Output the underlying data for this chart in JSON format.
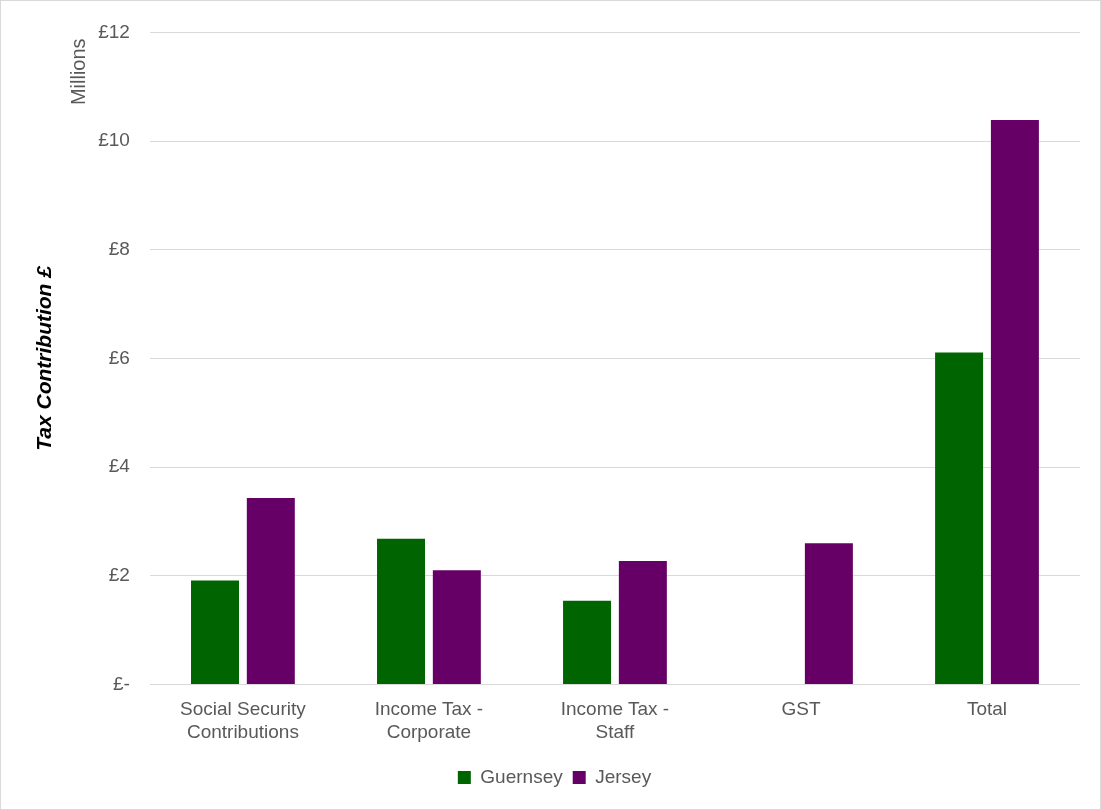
{
  "chart_data": {
    "type": "bar",
    "ylabel": "Tax Contribution £",
    "annotations": [
      "Millions"
    ],
    "categories": [
      "Social Security Contributions",
      "Income Tax - Corporate",
      "Income Tax - Staff",
      "GST",
      "Total"
    ],
    "series": [
      {
        "name": "Guernsey",
        "color": "#006400",
        "values": [
          1.91,
          2.68,
          1.54,
          null,
          6.11
        ]
      },
      {
        "name": "Jersey",
        "color": "#660066",
        "values": [
          3.43,
          2.1,
          2.27,
          2.6,
          10.39
        ]
      }
    ],
    "ylim": [
      0,
      12
    ],
    "yticks": [
      {
        "value": 0,
        "label": "£-"
      },
      {
        "value": 2,
        "label": "£2"
      },
      {
        "value": 4,
        "label": "£4"
      },
      {
        "value": 6,
        "label": "£6"
      },
      {
        "value": 8,
        "label": "£8"
      },
      {
        "value": 10,
        "label": "£10"
      },
      {
        "value": 12,
        "label": "£12"
      }
    ],
    "grid": "y",
    "legend": "bottom"
  }
}
